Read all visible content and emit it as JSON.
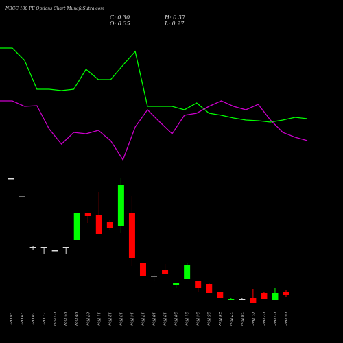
{
  "chart_data": {
    "type": "candlestick",
    "title": "NBCC 180 PE Options Chart MunafaSutra.com",
    "ohlc_header": [
      "C: 0.30",
      "H: 0.37",
      "O: 0.35",
      "L: 0.27"
    ],
    "categories": [
      "28 Oct",
      "29 Oct",
      "30 Oct",
      "31 Oct",
      "03 Nov",
      "04 Nov",
      "06 Nov",
      "07 Nov",
      "11 Nov",
      "12 Nov",
      "13 Nov",
      "14 Nov",
      "17 Nov",
      "18 Nov",
      "19 Nov",
      "20 Nov",
      "21 Nov",
      "24 Nov",
      "25 Nov",
      "26 Nov",
      "27 Nov",
      "28 Nov",
      "01 Dec",
      "02 Dec",
      "03 Dec",
      "04 Dec"
    ],
    "open": [
      2.0,
      1.75,
      1.0,
      1.0,
      0.95,
      1.0,
      1.1,
      1.5,
      1.46,
      1.36,
      1.3,
      1.49,
      0.76,
      0.58,
      0.67,
      0.45,
      0.53,
      0.51,
      0.46,
      0.34,
      0.23,
      0.24,
      0.25,
      0.33,
      0.23,
      0.35
    ],
    "high": [
      2.0,
      1.75,
      1.02,
      1.0,
      0.95,
      1.0,
      1.5,
      1.5,
      1.8,
      1.4,
      2.0,
      1.75,
      0.76,
      0.6,
      0.75,
      0.48,
      0.76,
      0.51,
      0.48,
      0.34,
      0.25,
      0.25,
      0.38,
      0.35,
      0.4,
      0.37
    ],
    "low": [
      2.0,
      1.75,
      0.96,
      0.9,
      0.95,
      0.9,
      1.1,
      1.35,
      1.19,
      1.25,
      1.2,
      0.72,
      0.58,
      0.5,
      0.6,
      0.4,
      0.53,
      0.35,
      0.33,
      0.25,
      0.22,
      0.23,
      0.18,
      0.24,
      0.23,
      0.27
    ],
    "close": [
      2.0,
      1.75,
      1.0,
      1.0,
      0.95,
      1.0,
      1.5,
      1.45,
      1.19,
      1.28,
      1.9,
      0.84,
      0.58,
      0.58,
      0.6,
      0.48,
      0.74,
      0.4,
      0.33,
      0.25,
      0.24,
      0.24,
      0.18,
      0.24,
      0.33,
      0.3
    ],
    "ylim": [
      0,
      2.1
    ],
    "up_color": "#00ff00",
    "down_color": "#ff0000",
    "flat_color": "#dddddd",
    "indicators": {
      "ylim": [
        0,
        200
      ],
      "series": [
        {
          "color": "#00ff00",
          "values": [
            180,
            180,
            162,
            120,
            120,
            118,
            120,
            149,
            134,
            134,
            155,
            175,
            95,
            95,
            95,
            90,
            100,
            85,
            82,
            78,
            75,
            74,
            72,
            75,
            79,
            77
          ]
        },
        {
          "color": "#cc00cc",
          "values": [
            103,
            103,
            95,
            96,
            62,
            40,
            57,
            55,
            60,
            45,
            17,
            65,
            90,
            72,
            55,
            82,
            85,
            95,
            103,
            95,
            90,
            98,
            75,
            57,
            50,
            45
          ]
        }
      ]
    }
  }
}
